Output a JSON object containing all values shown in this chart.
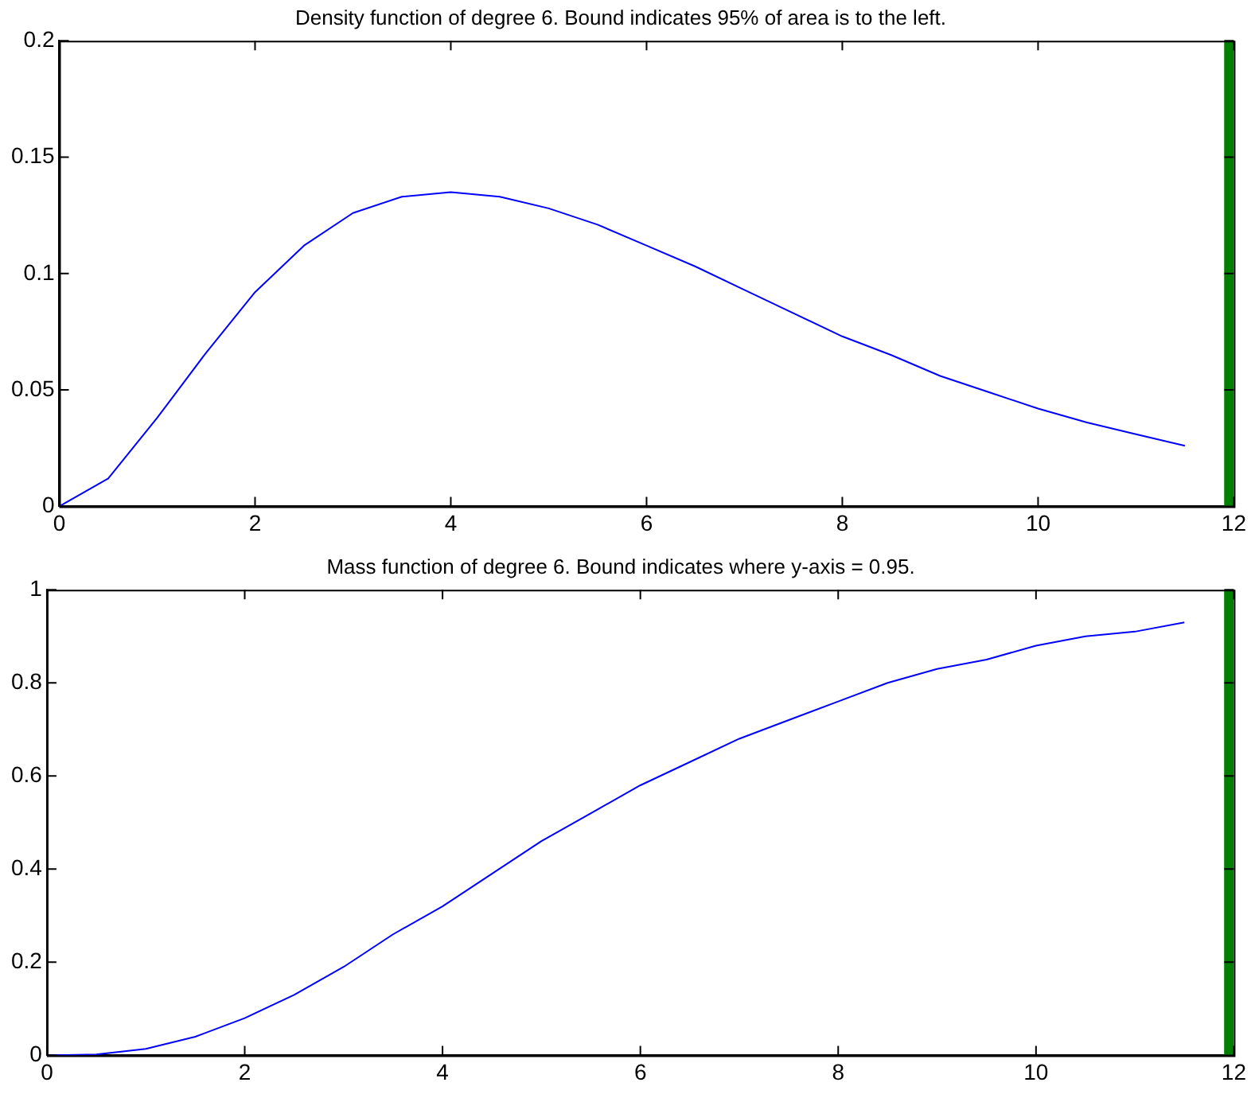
{
  "chart_data": [
    {
      "type": "line",
      "title": "Density function of degree 6. Bound indicates 95% of area is to the left.",
      "x": [
        0,
        0.5,
        1,
        1.5,
        2,
        2.5,
        3,
        3.5,
        4,
        4.5,
        5,
        5.5,
        6,
        6.5,
        7,
        7.5,
        8,
        8.5,
        9,
        9.5,
        10,
        10.5,
        11,
        11.5
      ],
      "series": [
        {
          "color": "#0000ff",
          "values": [
            0,
            0.012,
            0.038,
            0.066,
            0.092,
            0.112,
            0.126,
            0.133,
            0.135,
            0.133,
            0.128,
            0.121,
            0.112,
            0.103,
            0.093,
            0.083,
            0.073,
            0.065,
            0.056,
            0.049,
            0.042,
            0.036,
            0.031,
            0.026
          ]
        }
      ],
      "xlim": [
        0,
        12
      ],
      "xticks": [
        0,
        2,
        4,
        6,
        8,
        10,
        12
      ],
      "ylim": [
        0,
        0.2
      ],
      "yticks": [
        0,
        0.05,
        0.1,
        0.15,
        0.2
      ],
      "ref_lines": [
        {
          "axis": "x",
          "value": 11.95,
          "color": "#007f00"
        }
      ],
      "grid": false,
      "legend": false,
      "marker": "none",
      "line_style": "solid"
    },
    {
      "type": "line",
      "title": "Mass function of degree 6. Bound indicates where y-axis = 0.95.",
      "x": [
        0,
        0.5,
        1,
        1.5,
        2,
        2.5,
        3,
        3.5,
        4,
        4.5,
        5,
        5.5,
        6,
        6.5,
        7,
        7.5,
        8,
        8.5,
        9,
        9.5,
        10,
        10.5,
        11,
        11.5
      ],
      "series": [
        {
          "color": "#0000ff",
          "values": [
            0,
            0.002,
            0.014,
            0.04,
            0.08,
            0.13,
            0.19,
            0.26,
            0.32,
            0.39,
            0.46,
            0.52,
            0.58,
            0.63,
            0.68,
            0.72,
            0.76,
            0.8,
            0.83,
            0.85,
            0.88,
            0.9,
            0.91,
            0.93
          ]
        }
      ],
      "xlim": [
        0,
        12
      ],
      "xticks": [
        0,
        2,
        4,
        6,
        8,
        10,
        12
      ],
      "ylim": [
        0,
        1
      ],
      "yticks": [
        0,
        0.2,
        0.4,
        0.6,
        0.8,
        1
      ],
      "ref_lines": [
        {
          "axis": "x",
          "value": 11.95,
          "color": "#007f00"
        }
      ],
      "grid": false,
      "legend": false,
      "marker": "none",
      "line_style": "solid"
    }
  ]
}
